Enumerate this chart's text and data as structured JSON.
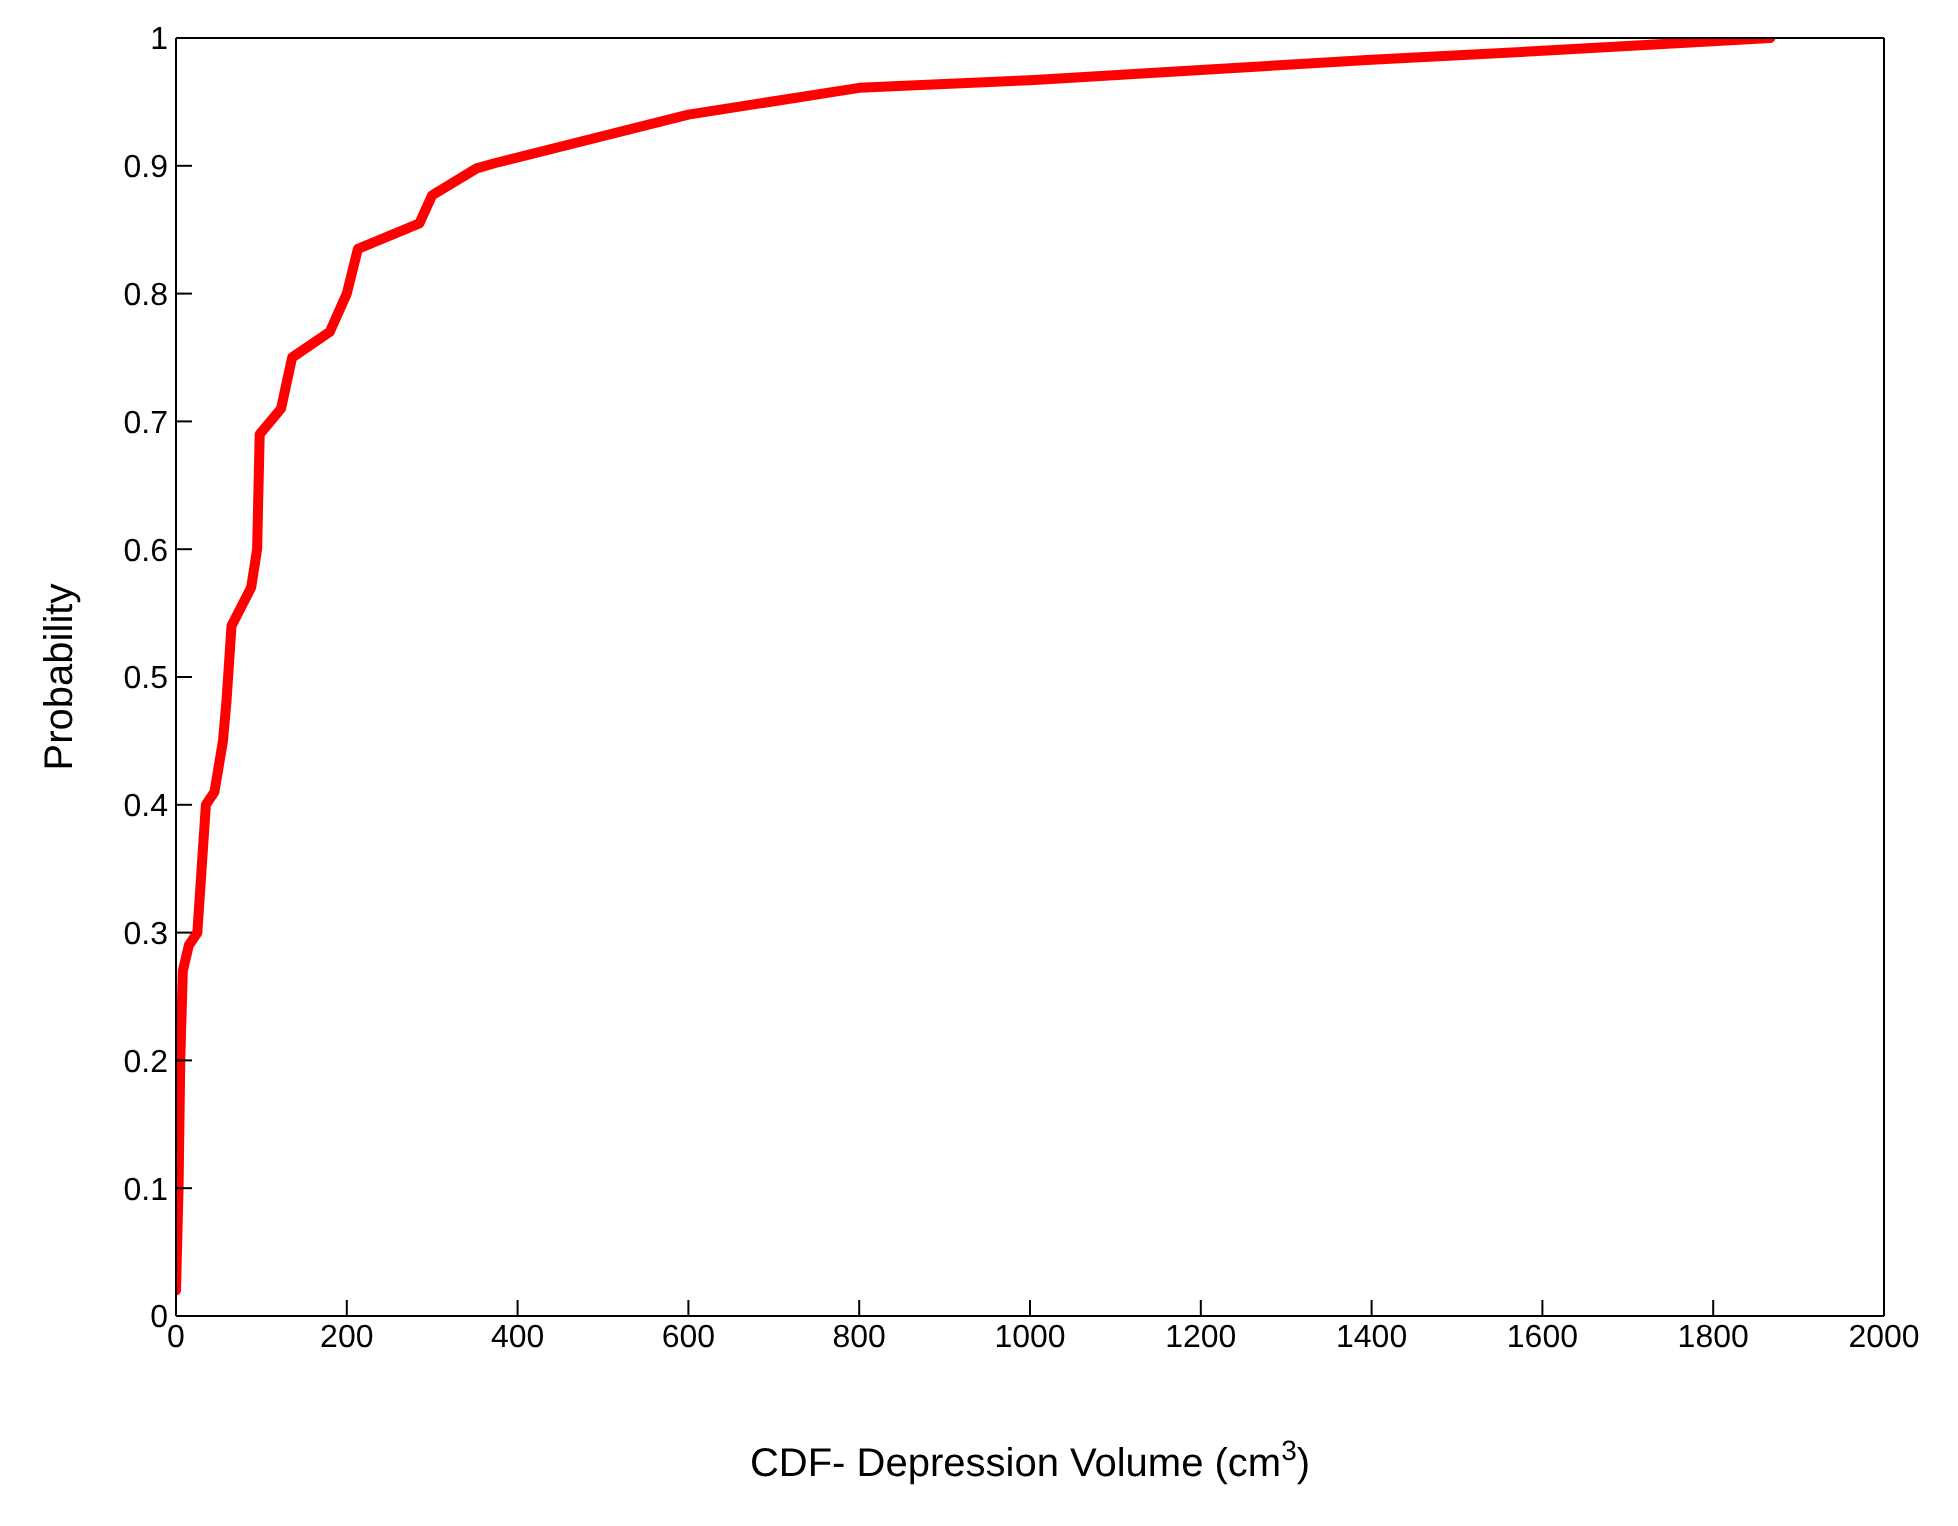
{
  "chart_data": {
    "type": "line",
    "xlabel": "CDF- Depression Volume (cm$^{3}$)",
    "ylabel": "Probability",
    "x": [
      0,
      3,
      5,
      8,
      15,
      25,
      30,
      35,
      45,
      55,
      59,
      65,
      88,
      95,
      98,
      123,
      136,
      180,
      200,
      213,
      285,
      300,
      352,
      373,
      600,
      800,
      1000,
      1200,
      1400,
      1600,
      1867
    ],
    "series": [
      {
        "color": "#ff0000",
        "values": [
          0.02,
          0.1,
          0.2,
          0.27,
          0.29,
          0.3,
          0.35,
          0.4,
          0.41,
          0.45,
          0.48,
          0.54,
          0.57,
          0.6,
          0.69,
          0.71,
          0.75,
          0.77,
          0.8,
          0.835,
          0.855,
          0.877,
          0.898,
          0.902,
          0.94,
          0.961,
          0.967,
          0.975,
          0.983,
          0.99,
          1.0
        ]
      }
    ],
    "xlim": [
      0,
      2000
    ],
    "xticks": [
      0,
      200,
      400,
      600,
      800,
      1000,
      1200,
      1400,
      1600,
      1800,
      2000
    ],
    "ylim": [
      0,
      1
    ],
    "yticks": [
      0,
      0.1,
      0.2,
      0.3,
      0.4,
      0.5,
      0.6,
      0.7,
      0.8,
      0.9,
      1
    ],
    "grid": false,
    "legend": false,
    "marker": "none",
    "line_style": "solid"
  }
}
